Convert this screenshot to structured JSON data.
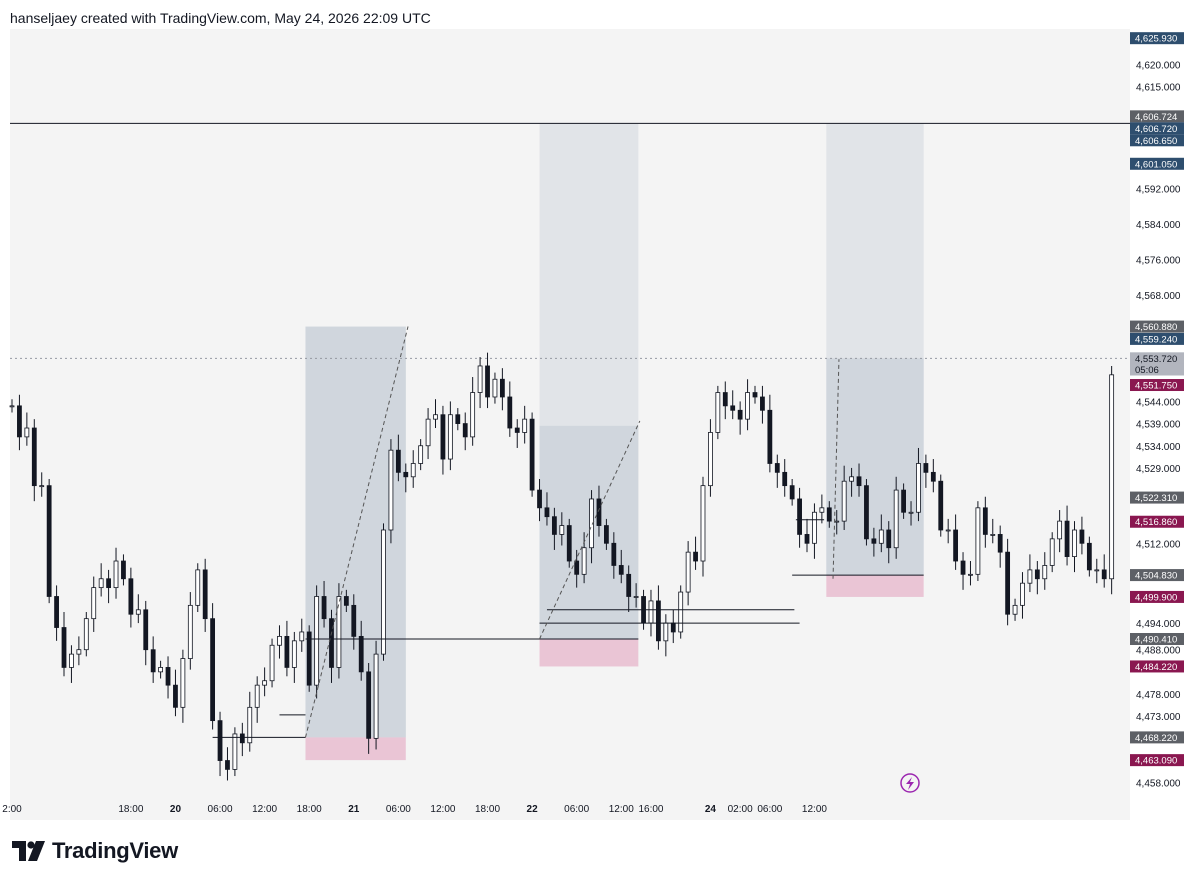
{
  "header": {
    "attribution": "hanseljaey created with TradingView.com, May 24, 2026 22:09 UTC"
  },
  "footer": {
    "brand": "TradingView",
    "logo_icon": "tradingview-logo-icon"
  },
  "colors": {
    "candle": "#131722",
    "profit_zone": "#c9d1d9",
    "loss_zone": "#e9c0d2",
    "line": "#131722",
    "label_blue": "#2e4e6e",
    "label_gray": "#5d6066",
    "label_red": "#8a1750",
    "label_light": "#b2b5be",
    "replay_icon": "#9c27b0"
  },
  "chart_data": {
    "type": "candlestick",
    "ylim": [
      4455,
      4628
    ],
    "y_ticks": [
      "4,620.000",
      "4,615.000",
      "4,592.000",
      "4,584.000",
      "4,576.000",
      "4,568.000",
      "4,544.000",
      "4,539.000",
      "4,534.000",
      "4,529.000",
      "4,512.000",
      "4,494.000",
      "4,488.000",
      "4,478.000",
      "4,473.000",
      "4,458.000"
    ],
    "y_ticks_values": [
      4620,
      4615,
      4592,
      4584,
      4576,
      4568,
      4544,
      4539,
      4534,
      4529,
      4512,
      4494,
      4488,
      4478,
      4473,
      4458
    ],
    "x_labels": [
      {
        "label": "2:00",
        "t": 0
      },
      {
        "label": "18:00",
        "t": 16
      },
      {
        "label": "20",
        "t": 22,
        "bold": true
      },
      {
        "label": "06:00",
        "t": 28
      },
      {
        "label": "12:00",
        "t": 34
      },
      {
        "label": "18:00",
        "t": 40
      },
      {
        "label": "21",
        "t": 46,
        "bold": true
      },
      {
        "label": "06:00",
        "t": 52
      },
      {
        "label": "12:00",
        "t": 58
      },
      {
        "label": "18:00",
        "t": 64
      },
      {
        "label": "22",
        "t": 70,
        "bold": true
      },
      {
        "label": "06:00",
        "t": 76
      },
      {
        "label": "12:00",
        "t": 82
      },
      {
        "label": "16:00",
        "t": 86
      },
      {
        "label": "24",
        "t": 94,
        "bold": true
      },
      {
        "label": "02:00",
        "t": 98
      },
      {
        "label": "06:00",
        "t": 102
      },
      {
        "label": "12:00",
        "t": 108
      }
    ],
    "price_labels": [
      {
        "text": "4,625.930",
        "y": 4625.93,
        "style": "blue"
      },
      {
        "text": "4,606.724",
        "y": 4608.3,
        "style": "gray"
      },
      {
        "text": "4,606.720",
        "y": 4605.6,
        "style": "blue"
      },
      {
        "text": "4,606.650",
        "y": 4602.9,
        "style": "blue"
      },
      {
        "text": "4,601.050",
        "y": 4597.6,
        "style": "blue"
      },
      {
        "text": "4,560.880",
        "y": 4560.88,
        "style": "gray"
      },
      {
        "text": "4,559.240",
        "y": 4558.1,
        "style": "blue"
      },
      {
        "text": "4,553.720",
        "y": 4553.72,
        "style": "light"
      },
      {
        "text": "05:06",
        "y": 4551.2,
        "style": "light"
      },
      {
        "text": "4,551.750",
        "y": 4547.7,
        "style": "red"
      },
      {
        "text": "4,522.310",
        "y": 4522.31,
        "style": "gray"
      },
      {
        "text": "4,516.860",
        "y": 4516.86,
        "style": "red"
      },
      {
        "text": "4,504.830",
        "y": 4504.83,
        "style": "gray"
      },
      {
        "text": "4,499.900",
        "y": 4499.9,
        "style": "red"
      },
      {
        "text": "4,490.410",
        "y": 4490.41,
        "style": "gray"
      },
      {
        "text": "4,484.220",
        "y": 4484.22,
        "style": "red"
      },
      {
        "text": "4,468.220",
        "y": 4468.22,
        "style": "gray"
      },
      {
        "text": "4,463.090",
        "y": 4463.09,
        "style": "red"
      }
    ],
    "hlines": [
      {
        "y": 4606.72,
        "t0": 0,
        "t1": 111,
        "style": "solid"
      },
      {
        "y": 4553.72,
        "t0": 0,
        "t1": 111,
        "style": "dotted"
      }
    ],
    "positions": [
      {
        "t0": 39.5,
        "t1": 53,
        "entry": 4468.22,
        "target": 4560.88,
        "stop": 4463.09,
        "fill_top": 4560.88
      },
      {
        "t0": 71,
        "t1": 84.3,
        "entry": 4490.41,
        "target": 4606.65,
        "stop": 4484.22,
        "fill_top": 4538.5
      },
      {
        "t0": 109.6,
        "t1": 122.7,
        "entry": 4504.83,
        "target": 4606.65,
        "stop": 4499.9,
        "fill_top": 4553.72
      }
    ],
    "levels": [
      {
        "y": 4473.3,
        "t0": 36,
        "t1": 39.5
      },
      {
        "y": 4468.22,
        "t0": 27,
        "t1": 39.5
      },
      {
        "y": 4490.41,
        "t0": 39.5,
        "t1": 84.3
      },
      {
        "y": 4497.0,
        "t0": 72,
        "t1": 105.3
      },
      {
        "y": 4494.0,
        "t0": 71,
        "t1": 106
      },
      {
        "y": 4517.3,
        "t0": 105.5,
        "t1": 109.3
      },
      {
        "y": 4504.83,
        "t0": 105,
        "t1": 122.7
      }
    ],
    "paths": [
      {
        "points": [
          [
            39.5,
            4468.22
          ],
          [
            53.3,
            4560.9
          ]
        ],
        "style": "dashed"
      },
      {
        "points": [
          [
            71.0,
            4490.41
          ],
          [
            84.5,
            4539.6
          ]
        ],
        "style": "dashed"
      },
      {
        "points": [
          [
            110.5,
            4504.0
          ],
          [
            111.3,
            4553.5
          ]
        ],
        "style": "dashed"
      }
    ],
    "series": [
      4543,
      4536,
      4538,
      4525,
      4525,
      4500,
      4493,
      4484,
      4487,
      4488,
      4495,
      4502,
      4504,
      4502,
      4508,
      4504,
      4496,
      4497,
      4488,
      4483,
      4484,
      4480,
      4475,
      4486,
      4498,
      4506,
      4495,
      4472,
      4463,
      4461,
      4469,
      4467,
      4475,
      4480,
      4481,
      4489,
      4491,
      4484,
      4490,
      4492,
      4480,
      4500,
      4495,
      4484,
      4500,
      4498,
      4491,
      4483,
      4468,
      4487,
      4515,
      4533,
      4528,
      4527,
      4530,
      4534,
      4540,
      4541,
      4531,
      4541,
      4539,
      4536,
      4546,
      4552,
      4545,
      4549,
      4545,
      4538,
      4537,
      4540,
      4524,
      4520,
      4518,
      4514,
      4516,
      4508,
      4505,
      4511,
      4522,
      4516,
      4512,
      4507,
      4505,
      4500,
      4500,
      4494,
      4499,
      4490,
      4494,
      4492,
      4501,
      4510,
      4508,
      4525,
      4537,
      4546,
      4543,
      4542,
      4540,
      4546,
      4545,
      4542,
      4530,
      4528,
      4525,
      4522,
      4514,
      4512,
      4519,
      4520,
      4517,
      4517,
      4526,
      4527,
      4525,
      4513,
      4512,
      4515,
      4511,
      4524,
      4519,
      4519,
      4530,
      4528,
      4526,
      4515,
      4515,
      4508,
      4505,
      4505,
      4520,
      4514,
      4514,
      4510,
      4496,
      4498,
      4503,
      4506,
      4504,
      4507,
      4513,
      4517,
      4509,
      4515,
      4512,
      4506,
      4506,
      4504,
      4550
    ]
  }
}
